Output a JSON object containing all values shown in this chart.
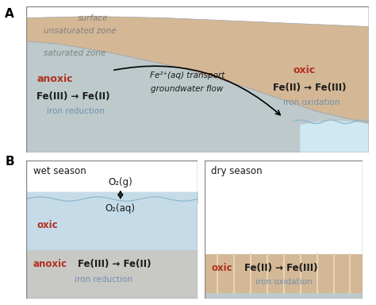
{
  "colors": {
    "unsaturated_zone": "#d4b896",
    "saturated_zone": "#bdc9cb",
    "water_blue": "#c5dce8",
    "water_blue_light": "#d0e8f2",
    "sandy_tan": "#d4b896",
    "background": "#ffffff",
    "anoxic_red": "#b03020",
    "oxic_red": "#b03020",
    "blue_text": "#7090b0",
    "dark_text": "#1a1a1a",
    "gray_text": "#808080",
    "border": "#888888",
    "light_blue_water": "#c5dce8",
    "medium_blue": "#90b8cc",
    "anox_gray": "#c8c8c4"
  },
  "panel_A_label": "A",
  "panel_B_label": "B",
  "panel_A": {
    "surface_text": "surface",
    "unsat_text": "unsaturated zone",
    "sat_text": "saturated zone",
    "anoxic_label": "anoxic",
    "oxic_label": "oxic",
    "left_reaction": "Fe(III) → Fe(II)",
    "left_sublabel": "iron reduction",
    "right_reaction": "Fe(II) → Fe(III)",
    "right_sublabel": "iron oxidation",
    "arrow_label1": "Fe²⁺(aq) transport",
    "arrow_label2": "groundwater flow"
  },
  "panel_B_wet": {
    "title": "wet season",
    "o2g_label": "O₂(g)",
    "o2aq_label": "O₂(aq)",
    "oxic_label": "oxic",
    "anoxic_label": "anoxic",
    "reaction": "Fe(III) → Fe(II)",
    "sublabel": "iron reduction"
  },
  "panel_B_dry": {
    "title": "dry season",
    "oxic_label": "oxic",
    "reaction": "Fe(II) → Fe(III)",
    "sublabel": "iron oxidation"
  }
}
